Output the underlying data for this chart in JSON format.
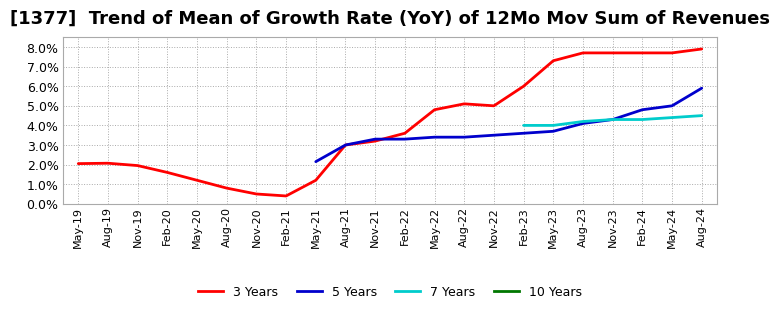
{
  "title": "[1377]  Trend of Mean of Growth Rate (YoY) of 12Mo Mov Sum of Revenues",
  "title_fontsize": 13,
  "ylim": [
    0.0,
    0.085
  ],
  "yticks": [
    0.0,
    0.01,
    0.02,
    0.03,
    0.04,
    0.05,
    0.06,
    0.07,
    0.08
  ],
  "background_color": "#ffffff",
  "plot_bg_color": "#ffffff",
  "grid_color": "#aaaaaa",
  "series": {
    "3 Years": {
      "color": "#ff0000",
      "linewidth": 2.0,
      "points": [
        [
          "May-19",
          0.0205
        ],
        [
          "Aug-19",
          0.0207
        ],
        [
          "Nov-19",
          0.0195
        ],
        [
          "Feb-20",
          0.016
        ],
        [
          "May-20",
          0.012
        ],
        [
          "Aug-20",
          0.008
        ],
        [
          "Nov-20",
          0.005
        ],
        [
          "Feb-21",
          0.004
        ],
        [
          "May-21",
          0.012
        ],
        [
          "Aug-21",
          0.03
        ],
        [
          "Nov-21",
          0.032
        ],
        [
          "Feb-22",
          0.036
        ],
        [
          "May-22",
          0.048
        ],
        [
          "Aug-22",
          0.051
        ],
        [
          "Nov-22",
          0.05
        ],
        [
          "Feb-23",
          0.06
        ],
        [
          "May-23",
          0.073
        ],
        [
          "Aug-23",
          0.077
        ],
        [
          "Nov-23",
          0.077
        ],
        [
          "Feb-24",
          0.077
        ],
        [
          "May-24",
          0.077
        ],
        [
          "Aug-24",
          0.079
        ]
      ]
    },
    "5 Years": {
      "color": "#0000cc",
      "linewidth": 2.0,
      "points": [
        [
          "May-21",
          0.0215
        ],
        [
          "Aug-21",
          0.03
        ],
        [
          "Nov-21",
          0.033
        ],
        [
          "Feb-22",
          0.033
        ],
        [
          "May-22",
          0.034
        ],
        [
          "Aug-22",
          0.034
        ],
        [
          "Nov-22",
          0.035
        ],
        [
          "Feb-23",
          0.036
        ],
        [
          "May-23",
          0.037
        ],
        [
          "Aug-23",
          0.041
        ],
        [
          "Nov-23",
          0.043
        ],
        [
          "Feb-24",
          0.048
        ],
        [
          "May-24",
          0.05
        ],
        [
          "Aug-24",
          0.059
        ]
      ]
    },
    "7 Years": {
      "color": "#00cccc",
      "linewidth": 2.0,
      "points": [
        [
          "Feb-23",
          0.04
        ],
        [
          "May-23",
          0.04
        ],
        [
          "Aug-23",
          0.042
        ],
        [
          "Nov-23",
          0.043
        ],
        [
          "Feb-24",
          0.043
        ],
        [
          "May-24",
          0.044
        ],
        [
          "Aug-24",
          0.045
        ]
      ]
    },
    "10 Years": {
      "color": "#007700",
      "linewidth": 2.0,
      "points": []
    }
  },
  "legend_labels": [
    "3 Years",
    "5 Years",
    "7 Years",
    "10 Years"
  ],
  "legend_colors": [
    "#ff0000",
    "#0000cc",
    "#00cccc",
    "#007700"
  ],
  "xtick_labels": [
    "May-19",
    "Aug-19",
    "Nov-19",
    "Feb-20",
    "May-20",
    "Aug-20",
    "Nov-20",
    "Feb-21",
    "May-21",
    "Aug-21",
    "Nov-21",
    "Feb-22",
    "May-22",
    "Aug-22",
    "Nov-22",
    "Feb-23",
    "May-23",
    "Aug-23",
    "Nov-23",
    "Feb-24",
    "May-24",
    "Aug-24"
  ]
}
